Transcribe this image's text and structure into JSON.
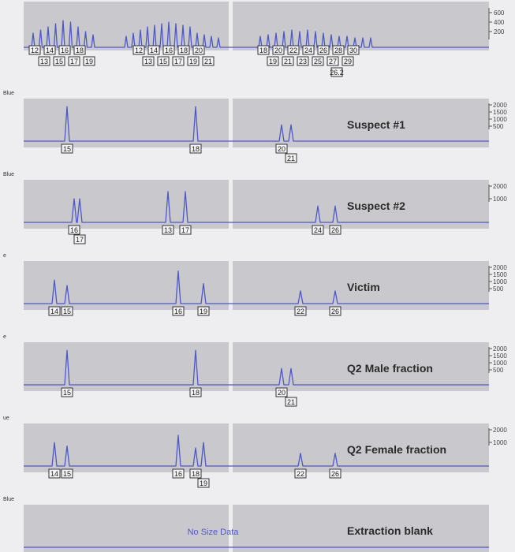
{
  "chart_data": {
    "type": "line",
    "ladder": {
      "scale": [
        "600",
        "400",
        "200"
      ],
      "locus1": {
        "top": [
          "12",
          "14",
          "16",
          "18"
        ],
        "bottom": [
          "13",
          "15",
          "17",
          "19"
        ]
      },
      "locus2": {
        "top": [
          "12",
          "14",
          "16",
          "18",
          "20"
        ],
        "bottom": [
          "13",
          "15",
          "17",
          "19",
          "21"
        ]
      },
      "locus3": {
        "top": [
          "18",
          "20",
          "22",
          "24",
          "26",
          "28",
          "30"
        ],
        "bottom": [
          "19",
          "21",
          "23",
          "25",
          "27",
          "29"
        ],
        "extra": [
          "26.2"
        ]
      }
    },
    "panels": [
      {
        "name": "Suspect #1",
        "dye": "Blue",
        "scale": [
          "2000",
          "1500",
          "1000",
          "500"
        ],
        "locus1": [
          [
            "15",
            0.95
          ]
        ],
        "locus2": [
          [
            "18",
            0.95
          ]
        ],
        "locus3": [
          [
            "20",
            0.45
          ],
          [
            "21",
            0.45
          ]
        ]
      },
      {
        "name": "Suspect #2",
        "dye": "Blue",
        "scale": [
          "2000",
          "1000"
        ],
        "locus1": [
          [
            "16",
            0.65
          ],
          [
            "17",
            0.65
          ]
        ],
        "locus2": [
          [
            "13",
            0.85
          ],
          [
            "17",
            0.85
          ]
        ],
        "locus3": [
          [
            "24",
            0.45
          ],
          [
            "26",
            0.45
          ]
        ]
      },
      {
        "name": "Victim",
        "dye": "e",
        "scale": [
          "2000",
          "1500",
          "1000",
          "500"
        ],
        "locus1": [
          [
            "14",
            0.65
          ],
          [
            "15",
            0.5
          ]
        ],
        "locus2": [
          [
            "16",
            0.9
          ],
          [
            "19",
            0.55
          ]
        ],
        "locus3": [
          [
            "22",
            0.35
          ],
          [
            "26",
            0.35
          ]
        ]
      },
      {
        "name": "Q2 Male fraction",
        "dye": "e",
        "scale": [
          "2000",
          "1500",
          "1000",
          "500"
        ],
        "locus1": [
          [
            "15",
            0.95
          ]
        ],
        "locus2": [
          [
            "18",
            0.95
          ]
        ],
        "locus3": [
          [
            "20",
            0.45
          ],
          [
            "21",
            0.45
          ]
        ]
      },
      {
        "name": "Q2 Female fraction",
        "dye": "ue",
        "scale": [
          "2000",
          "1000"
        ],
        "locus1": [
          [
            "14",
            0.65
          ],
          [
            "15",
            0.55
          ]
        ],
        "locus2": [
          [
            "16",
            0.85
          ],
          [
            "18",
            0.5
          ],
          [
            "19",
            0.65
          ]
        ],
        "locus3": [
          [
            "22",
            0.35
          ],
          [
            "26",
            0.35
          ]
        ]
      },
      {
        "name": "Extraction blank",
        "dye": "Blue",
        "scale": [],
        "locus1": [],
        "locus2": [],
        "locus3": [],
        "note": "No Size Data"
      }
    ]
  },
  "colors": {
    "trace": "#4d58c8",
    "panel": "#c9c9cd",
    "page": "#eeeef0"
  }
}
